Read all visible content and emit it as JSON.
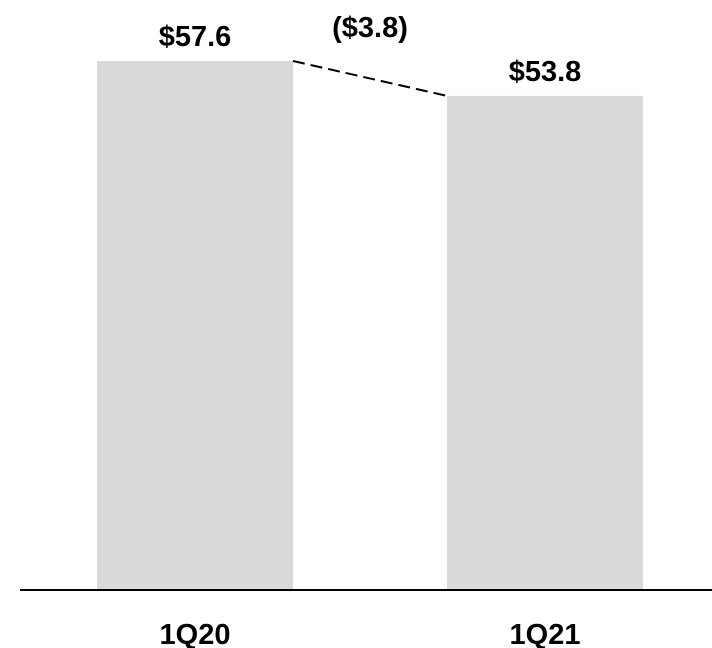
{
  "chart_data": {
    "type": "bar",
    "categories": [
      "1Q20",
      "1Q21"
    ],
    "values": [
      57.6,
      53.8
    ],
    "data_labels": [
      "$57.6",
      "$53.8"
    ],
    "change": {
      "value": -3.8,
      "label": "($3.8)"
    },
    "title": "",
    "xlabel": "",
    "ylabel": "",
    "ylim": [
      0,
      57.6
    ],
    "grid": false,
    "legend": "none",
    "colors": {
      "bar": "#d9d9d9",
      "axis": "#000000",
      "connector": "#000000",
      "text": "#000000"
    }
  }
}
